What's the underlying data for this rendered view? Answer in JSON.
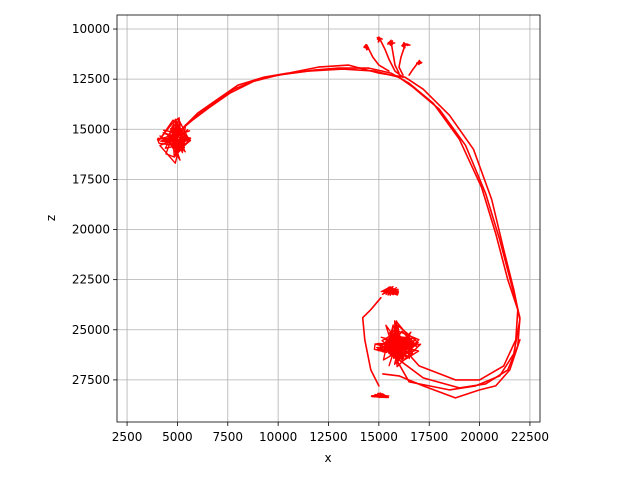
{
  "chart_data": {
    "type": "line",
    "title": "",
    "xlabel": "x",
    "ylabel": "z",
    "xlim": [
      2000,
      23000
    ],
    "ylim": [
      29600,
      9300
    ],
    "y_inverted": true,
    "grid": true,
    "legend": "none",
    "xticks": [
      2500,
      5000,
      7500,
      10000,
      12500,
      15000,
      17500,
      20000,
      22500
    ],
    "yticks": [
      10000,
      12500,
      15000,
      17500,
      20000,
      22500,
      25000,
      27500
    ],
    "xtick_labels": [
      "2500",
      "5000",
      "7500",
      "10000",
      "12500",
      "15000",
      "17500",
      "20000",
      "22500"
    ],
    "ytick_labels": [
      "10000",
      "12500",
      "15000",
      "17500",
      "20000",
      "22500",
      "25000",
      "27500"
    ],
    "color": "#ff0000",
    "series": [
      {
        "values_xz": [
          [
            15600,
            26000
          ],
          [
            16500,
            27600
          ],
          [
            18500,
            28000
          ],
          [
            19800,
            27800
          ],
          [
            21000,
            27300
          ],
          [
            21700,
            26200
          ],
          [
            22000,
            24500
          ],
          [
            21700,
            23000
          ],
          [
            21200,
            21000
          ],
          [
            20600,
            18500
          ],
          [
            19700,
            16000
          ],
          [
            18500,
            14300
          ],
          [
            17200,
            13000
          ],
          [
            16300,
            12400
          ],
          [
            15000,
            12200
          ],
          [
            13500,
            11800
          ],
          [
            12000,
            11900
          ],
          [
            10500,
            12200
          ],
          [
            9300,
            12400
          ],
          [
            8000,
            12800
          ],
          [
            7000,
            13500
          ],
          [
            6000,
            14200
          ],
          [
            5500,
            14700
          ],
          [
            5000,
            15200
          ]
        ]
      },
      {
        "values_xz": [
          [
            16000,
            26500
          ],
          [
            17200,
            27400
          ],
          [
            19000,
            27900
          ],
          [
            20300,
            27700
          ],
          [
            21400,
            27000
          ],
          [
            21900,
            25800
          ],
          [
            22000,
            24400
          ],
          [
            21600,
            22800
          ],
          [
            21000,
            20500
          ],
          [
            20300,
            18200
          ],
          [
            19300,
            15800
          ],
          [
            18000,
            14000
          ],
          [
            16700,
            12900
          ],
          [
            16000,
            12400
          ],
          [
            14800,
            12100
          ],
          [
            13200,
            12000
          ],
          [
            11500,
            12100
          ],
          [
            10000,
            12300
          ],
          [
            8800,
            12600
          ],
          [
            7600,
            13200
          ],
          [
            6600,
            13900
          ],
          [
            5800,
            14500
          ],
          [
            5200,
            15000
          ]
        ]
      },
      {
        "values_xz": [
          [
            16200,
            25900
          ],
          [
            17000,
            26800
          ],
          [
            18800,
            27500
          ],
          [
            20000,
            27500
          ],
          [
            21200,
            26800
          ],
          [
            21800,
            25500
          ],
          [
            21900,
            24000
          ],
          [
            21400,
            22500
          ],
          [
            20800,
            20200
          ],
          [
            20100,
            17900
          ],
          [
            19000,
            15500
          ],
          [
            17700,
            13700
          ],
          [
            16500,
            12700
          ],
          [
            15600,
            12200
          ],
          [
            14500,
            11950
          ],
          [
            13000,
            11950
          ],
          [
            11800,
            12050
          ],
          [
            10300,
            12250
          ],
          [
            9000,
            12500
          ],
          [
            7800,
            13000
          ],
          [
            6800,
            13700
          ],
          [
            6000,
            14300
          ],
          [
            5400,
            14800
          ]
        ]
      },
      {
        "values_xz": [
          [
            15200,
            27200
          ],
          [
            16000,
            27300
          ],
          [
            17200,
            27800
          ],
          [
            18800,
            28400
          ],
          [
            20000,
            28000
          ],
          [
            20800,
            27800
          ],
          [
            21500,
            27000
          ],
          [
            22000,
            25500
          ]
        ]
      },
      {
        "values_xz": [
          [
            15100,
            23400
          ],
          [
            14600,
            24000
          ],
          [
            14200,
            24400
          ],
          [
            14300,
            25500
          ],
          [
            14600,
            27000
          ],
          [
            15000,
            27800
          ]
        ]
      },
      {
        "values_xz": [
          [
            15000,
            10400
          ],
          [
            15300,
            11000
          ],
          [
            15500,
            11500
          ],
          [
            15800,
            12100
          ],
          [
            16200,
            12400
          ]
        ]
      },
      {
        "values_xz": [
          [
            14400,
            10800
          ],
          [
            14700,
            11400
          ],
          [
            15000,
            11800
          ],
          [
            15500,
            12100
          ]
        ]
      },
      {
        "values_xz": [
          [
            16300,
            10800
          ],
          [
            16100,
            11400
          ],
          [
            16000,
            11900
          ],
          [
            16200,
            12300
          ]
        ]
      },
      {
        "values_xz": [
          [
            17000,
            11600
          ],
          [
            16700,
            12000
          ],
          [
            16500,
            12300
          ]
        ]
      },
      {
        "values_xz": [
          [
            15600,
            10600
          ],
          [
            15700,
            11200
          ],
          [
            15800,
            11800
          ],
          [
            16000,
            12200
          ]
        ]
      }
    ],
    "clusters": [
      {
        "center": [
          15900,
          25700
        ],
        "radius": [
          1200,
          1200
        ],
        "count": 18
      },
      {
        "center": [
          15600,
          23100
        ],
        "radius": [
          600,
          300
        ],
        "count": 5
      },
      {
        "center": [
          15100,
          28300
        ],
        "radius": [
          500,
          150
        ],
        "count": 4
      },
      {
        "center": [
          4900,
          15500
        ],
        "radius": [
          900,
          1200
        ],
        "count": 10
      },
      {
        "center": [
          15000,
          10500
        ],
        "radius": [
          200,
          150
        ],
        "count": 2
      },
      {
        "center": [
          16300,
          10800
        ],
        "radius": [
          250,
          150
        ],
        "count": 2
      },
      {
        "center": [
          15600,
          10700
        ],
        "radius": [
          200,
          150
        ],
        "count": 2
      },
      {
        "center": [
          14400,
          10900
        ],
        "radius": [
          150,
          150
        ],
        "count": 2
      },
      {
        "center": [
          17000,
          11700
        ],
        "radius": [
          150,
          150
        ],
        "count": 2
      }
    ]
  }
}
